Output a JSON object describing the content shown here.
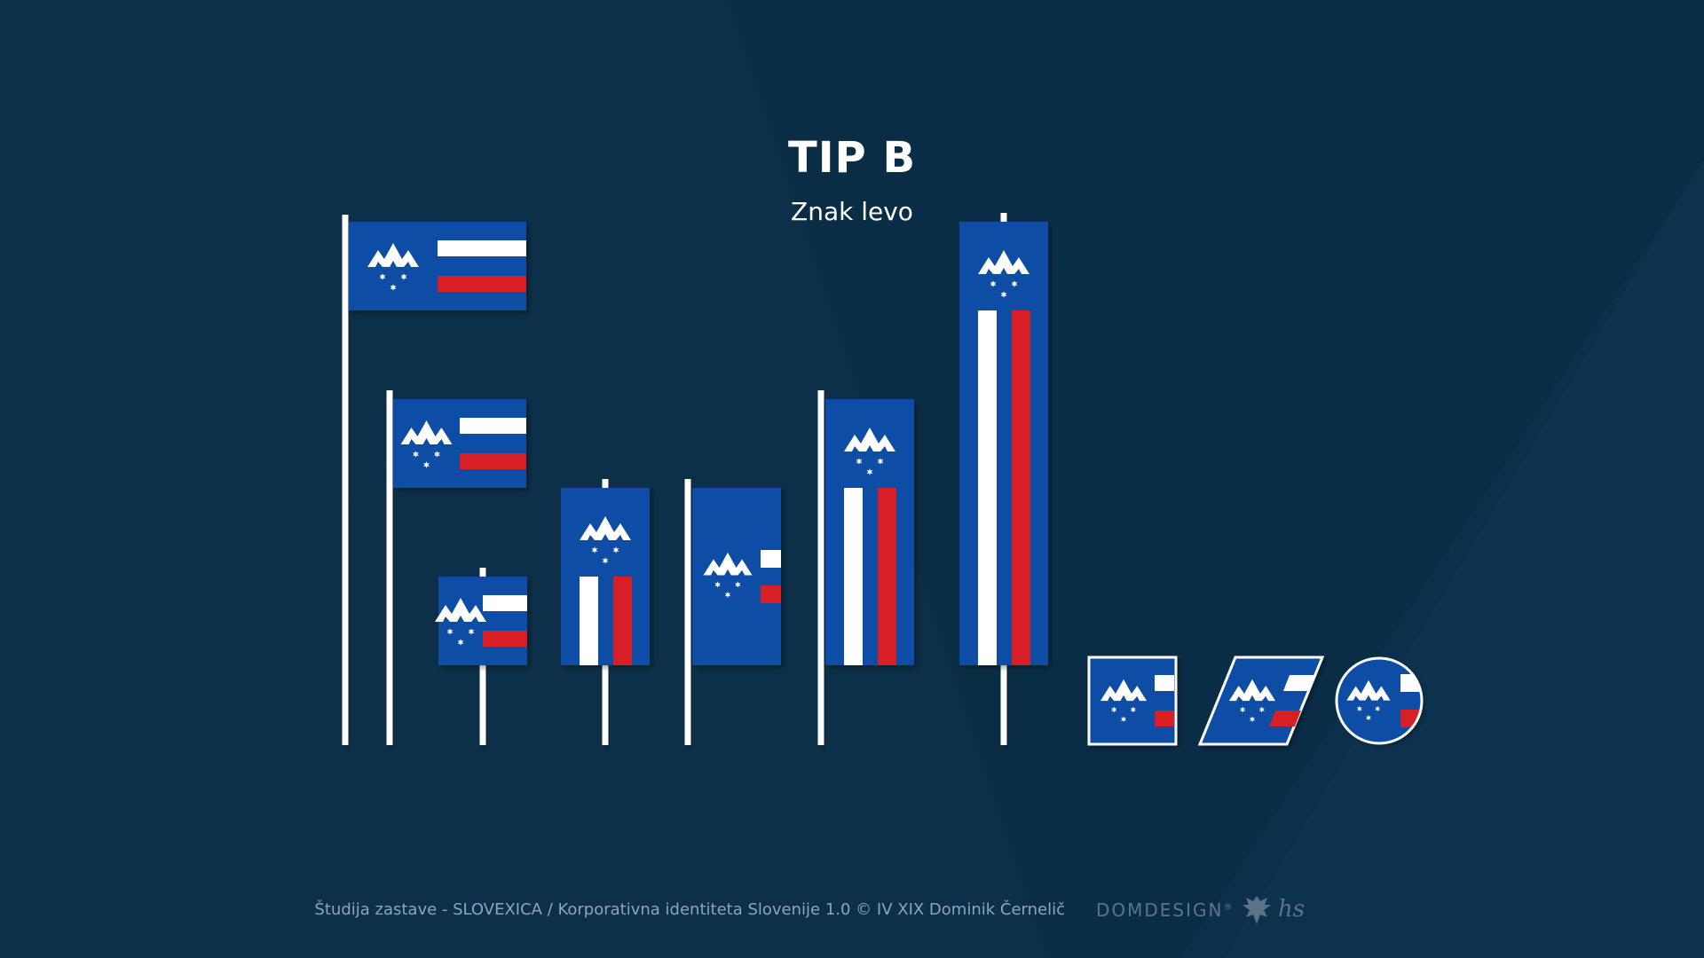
{
  "header": {
    "title": "TIP B",
    "subtitle": "Znak levo"
  },
  "footer": {
    "credits": "Študija zastave - SLOVEXICA / Korporativna identiteta Slovenije 1.0 © IV XIX Dominik Černelič",
    "brand": "DOMDESIGN",
    "brand_mark": "®",
    "hs_mark": "hs"
  },
  "colors": {
    "background": "#0c3049",
    "flag_blue": "#0a4da6",
    "flag_white": "#ffffff",
    "flag_red": "#d91f26",
    "pole": "#ffffff",
    "footer_text": "#8ea4b8"
  },
  "icons": [
    "mountain-emblem-icon",
    "star-icon",
    "eagle-crest-icon"
  ]
}
